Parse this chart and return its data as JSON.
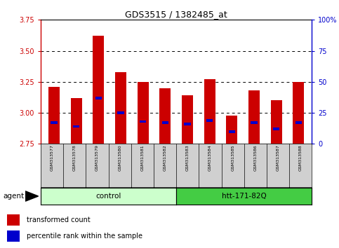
{
  "title": "GDS3515 / 1382485_at",
  "samples": [
    "GSM313577",
    "GSM313578",
    "GSM313579",
    "GSM313580",
    "GSM313581",
    "GSM313582",
    "GSM313583",
    "GSM313584",
    "GSM313585",
    "GSM313586",
    "GSM313587",
    "GSM313588"
  ],
  "bar_values": [
    3.21,
    3.12,
    3.62,
    3.33,
    3.25,
    3.2,
    3.14,
    3.27,
    2.98,
    3.18,
    3.1,
    3.25
  ],
  "percentile_values": [
    17,
    14,
    37,
    25,
    18,
    17,
    16,
    19,
    10,
    17,
    12,
    17
  ],
  "ylim": [
    2.75,
    3.75
  ],
  "y2lim": [
    0,
    100
  ],
  "yticks": [
    2.75,
    3.0,
    3.25,
    3.5,
    3.75
  ],
  "y2ticks": [
    0,
    25,
    50,
    75,
    100
  ],
  "y2ticklabels": [
    "0",
    "25",
    "50",
    "75",
    "100%"
  ],
  "bar_color": "#cc0000",
  "percentile_color": "#0000cc",
  "bar_bottom": 2.75,
  "grid_values": [
    3.0,
    3.25,
    3.5
  ],
  "group1_label": "control",
  "group2_label": "htt-171-82Q",
  "agent_label": "agent",
  "legend1": "transformed count",
  "legend2": "percentile rank within the sample",
  "light_green": "#ccffcc",
  "dark_green": "#44cc44",
  "bar_width": 0.5,
  "left_color": "#cc0000",
  "right_color": "#0000cc",
  "fig_width": 4.83,
  "fig_height": 3.54,
  "dpi": 100
}
